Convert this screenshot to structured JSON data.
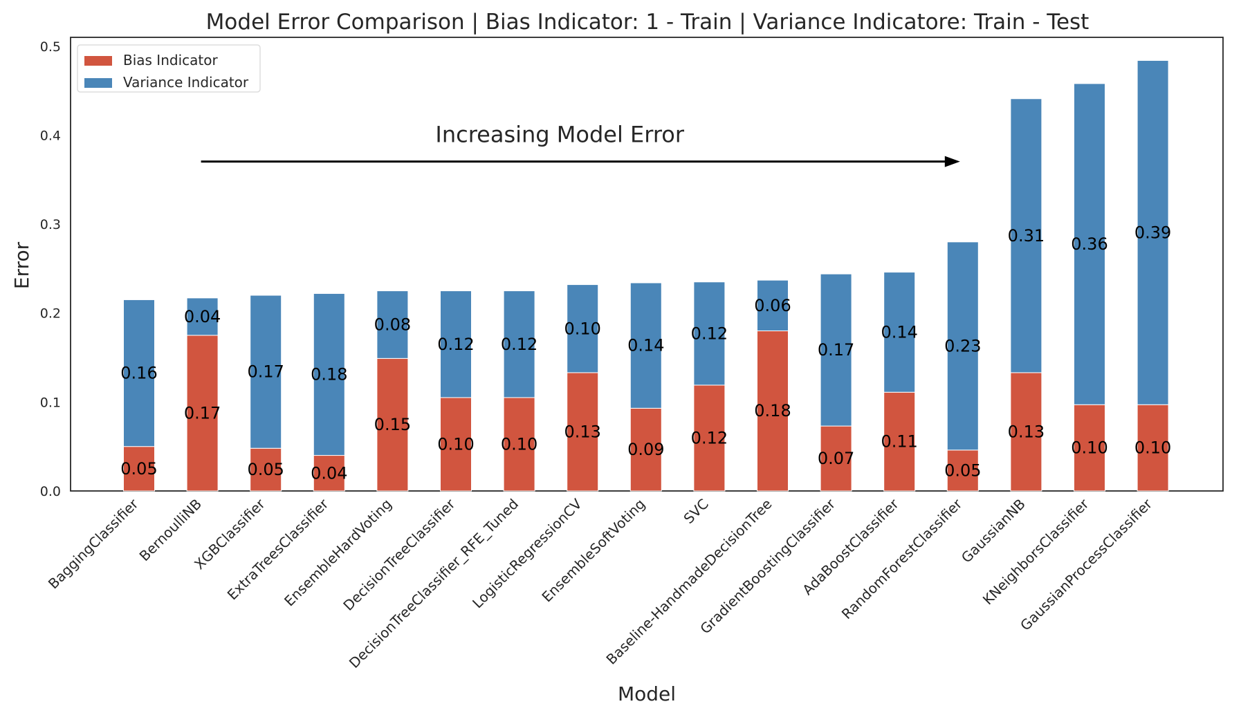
{
  "chart_data": {
    "type": "bar",
    "stacked": true,
    "title": "Model Error Comparison  |  Bias Indicator: 1 - Train  |  Variance Indicatore: Train - Test",
    "xlabel": "Model",
    "ylabel": "Error",
    "ylim": [
      0,
      0.51
    ],
    "yticks": [
      "0.0",
      "0.1",
      "0.2",
      "0.3",
      "0.4",
      "0.5"
    ],
    "grid": false,
    "legend_position": "top-left",
    "categories": [
      "BaggingClassifier",
      "BernoulliNB",
      "XGBClassifier",
      "ExtraTreesClassifier",
      "EnsembleHardVoting",
      "DecisionTreeClassifier",
      "DecisionTreeClassifier_RFE_Tuned",
      "LogisticRegressionCV",
      "EnsembleSoftVoting",
      "SVC",
      "Baseline-HandmadeDecisionTree",
      "GradientBoostingClassifier",
      "AdaBoostClassifier",
      "RandomForestClassifier",
      "GaussianNB",
      "KNeighborsClassifier",
      "GaussianProcessClassifier"
    ],
    "series": [
      {
        "name": "Bias Indicator",
        "color": "#d1553f",
        "values": [
          0.05,
          0.175,
          0.048,
          0.04,
          0.149,
          0.105,
          0.105,
          0.133,
          0.093,
          0.119,
          0.18,
          0.073,
          0.111,
          0.046,
          0.133,
          0.097,
          0.097
        ],
        "labels": [
          "0.05",
          "0.17",
          "0.05",
          "0.04",
          "0.15",
          "0.10",
          "0.10",
          "0.13",
          "0.09",
          "0.12",
          "0.18",
          "0.07",
          "0.11",
          "0.05",
          "0.13",
          "0.10",
          "0.10"
        ]
      },
      {
        "name": "Variance Indicator",
        "color": "#4a86b8",
        "values": [
          0.165,
          0.042,
          0.172,
          0.182,
          0.076,
          0.12,
          0.12,
          0.099,
          0.141,
          0.116,
          0.057,
          0.171,
          0.135,
          0.234,
          0.308,
          0.361,
          0.387
        ],
        "labels": [
          "0.16",
          "0.04",
          "0.17",
          "0.18",
          "0.08",
          "0.12",
          "0.12",
          "0.10",
          "0.14",
          "0.12",
          "0.06",
          "0.17",
          "0.14",
          "0.23",
          "0.31",
          "0.36",
          "0.39"
        ]
      }
    ],
    "annotation": {
      "text": "Increasing Model Error",
      "arrow_from_category": 1,
      "arrow_to_category": 13,
      "arrow_y": 0.37,
      "text_y": 0.4
    }
  }
}
